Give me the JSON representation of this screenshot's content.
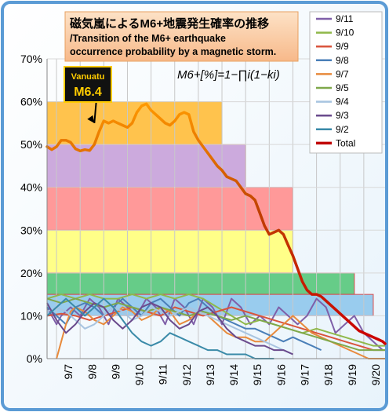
{
  "chart_data": {
    "type": "line",
    "title_ja": "磁気嵐によるM6+地震発生確率の推移",
    "title_en_1": "/Transition of the M6+ earthquake",
    "title_en_2": "occurrence probability by a magnetic storm.",
    "formula": "M6+[%]=1−∏i(1−ki)",
    "annotation": {
      "line1": "Vanuatu",
      "line2": "M6.4",
      "x": 8.6,
      "y": 55
    },
    "x_range": [
      6.6,
      20.9
    ],
    "ylim": [
      0,
      70
    ],
    "yticks": [
      "0%",
      "10%",
      "20%",
      "30%",
      "40%",
      "50%",
      "60%",
      "70%"
    ],
    "categories": [
      "9/7",
      "9/8",
      "9/9",
      "9/10",
      "9/11",
      "9/12",
      "9/13",
      "9/14",
      "9/15",
      "9/16",
      "9/17",
      "9/18",
      "9/19",
      "9/20"
    ],
    "legend": [
      "9/11",
      "9/10",
      "9/9",
      "9/8",
      "9/7",
      "9/5",
      "9/4",
      "9/3",
      "9/2",
      "Total"
    ],
    "colors": {
      "9/11": "#7f5fa8",
      "9/10": "#8fb84a",
      "9/9": "#d9543c",
      "9/8": "#4a7fb8",
      "9/7": "#e88a3c",
      "9/5": "#7fa84a",
      "9/4": "#a8c4e0",
      "9/3": "#6a4a8c",
      "9/2": "#3a8aa8",
      "Total": "#c00000"
    },
    "bands": [
      {
        "y0": 50,
        "y1": 60,
        "x1": 14.0,
        "fill": "#ffc34d",
        "stroke": "#e0a020"
      },
      {
        "y0": 40,
        "y1": 50,
        "x1": 15.0,
        "fill": "#ccaadd",
        "stroke": "#d06a6a"
      },
      {
        "y0": 30,
        "y1": 40,
        "x1": 17.0,
        "fill": "#ff9999",
        "stroke": "#d94a4a"
      },
      {
        "y0": 20,
        "y1": 30,
        "x1": 17.0,
        "fill": "#ffff88",
        "stroke": "#d94a4a"
      },
      {
        "y0": 15,
        "y1": 20,
        "x1": 19.6,
        "fill": "#66cc88",
        "stroke": "#d94a4a"
      },
      {
        "y0": 10,
        "y1": 15,
        "x1": 20.4,
        "fill": "#99ccee",
        "stroke": "#d94a4a"
      }
    ],
    "total": {
      "x": [
        6.6,
        6.8,
        7.0,
        7.2,
        7.4,
        7.6,
        7.8,
        8.0,
        8.2,
        8.4,
        8.6,
        8.8,
        9.0,
        9.2,
        9.4,
        9.6,
        9.8,
        10.0,
        10.2,
        10.4,
        10.6,
        10.8,
        11.0,
        11.2,
        11.4,
        11.6,
        11.8,
        12.0,
        12.2,
        12.4,
        12.6,
        12.8,
        13.0,
        13.2,
        13.4,
        13.6,
        13.8,
        14.0,
        14.2,
        14.4,
        14.6,
        14.8,
        15.0,
        15.2,
        15.4,
        15.6,
        15.8,
        16.0,
        16.2,
        16.4,
        16.6,
        16.8,
        17.0,
        17.2,
        17.4,
        17.6,
        17.8,
        18.0,
        18.2,
        18.4,
        18.6,
        18.8,
        19.0,
        19.2,
        19.4,
        19.6,
        19.8,
        20.0,
        20.2,
        20.4,
        20.6,
        20.8,
        20.9
      ],
      "y": [
        49.5,
        48.8,
        49.5,
        51,
        51,
        50.5,
        49,
        48.5,
        48.8,
        48.6,
        50,
        53,
        55.5,
        55,
        55.5,
        55,
        54.5,
        54,
        55,
        57.5,
        59,
        59.5,
        58,
        57,
        56,
        55,
        54.5,
        55.5,
        57,
        57.5,
        57,
        53,
        51,
        49.5,
        48,
        46.5,
        45,
        44,
        42.5,
        42,
        41.5,
        40,
        38.5,
        38,
        37,
        34,
        31,
        29,
        29.5,
        30,
        29,
        26.5,
        24,
        21,
        18,
        16,
        15,
        15,
        14.5,
        13.5,
        12.5,
        11.5,
        10.5,
        9.5,
        8.5,
        7.5,
        6.5,
        6,
        5.5,
        5,
        4.5,
        4,
        3.5
      ]
    },
    "series": [
      {
        "name": "9/11",
        "x": [
          6.6,
          6.8,
          7.0,
          7.2,
          7.6,
          8.0,
          8.4,
          8.8,
          9.2,
          9.6,
          10.0,
          10.4,
          10.8,
          11.2,
          11.6,
          12.0,
          12.4,
          12.8,
          13.2,
          13.6,
          14.0,
          14.4,
          14.8,
          15.2,
          15.6,
          16.0,
          16.4,
          16.8,
          17.2,
          17.6,
          18.0,
          18.4,
          18.8,
          19.2,
          19.6,
          20.0,
          20.4,
          20.8
        ],
        "y": [
          12,
          10,
          8,
          10,
          12,
          10,
          14,
          12,
          8,
          14,
          12,
          10,
          14,
          12,
          8,
          14,
          12,
          8,
          14,
          12,
          8,
          14,
          12,
          8,
          10,
          8,
          12,
          10,
          8,
          10,
          14,
          12,
          6,
          8,
          10,
          6,
          4,
          2
        ]
      },
      {
        "name": "9/10",
        "x": [
          6.6,
          7.2,
          7.8,
          8.4,
          9.0,
          9.6,
          10.2,
          10.8,
          11.4,
          12.0,
          12.6,
          13.2,
          13.8,
          14.4,
          15.0,
          15.6,
          16.2,
          16.8,
          17.4,
          18.0,
          18.6,
          19.2,
          19.8,
          20.4,
          20.9
        ],
        "y": [
          14,
          15,
          14,
          15,
          14,
          14,
          15,
          14,
          15,
          14,
          15,
          14,
          12,
          10,
          8,
          9,
          8,
          7,
          6,
          7,
          6,
          5,
          4,
          3,
          3
        ]
      },
      {
        "name": "9/9",
        "x": [
          6.6,
          7.2,
          7.8,
          8.4,
          9.0,
          9.6,
          10.2,
          10.8,
          11.4,
          12.0,
          12.6,
          13.2,
          13.8,
          14.4,
          15.0,
          15.6,
          16.2,
          16.8,
          17.4,
          18.0,
          18.6,
          19.2,
          19.8,
          20.4,
          20.9
        ],
        "y": [
          10,
          10.5,
          10,
          9,
          10,
          11,
          12,
          11,
          10,
          12,
          11,
          10,
          11,
          12,
          11,
          10,
          9,
          8,
          7,
          6,
          5,
          4,
          3,
          2,
          2
        ]
      },
      {
        "name": "9/8",
        "x": [
          6.6,
          7.0,
          7.4,
          7.8,
          8.2,
          8.6,
          9.0,
          9.4,
          9.8,
          10.2,
          10.6,
          11.0,
          11.4,
          11.8,
          12.2,
          12.6,
          13.0,
          13.4,
          13.8,
          14.2,
          14.6,
          15.0,
          15.4,
          15.8,
          16.2,
          16.6,
          17.0,
          17.4,
          17.8,
          18.2
        ],
        "y": [
          12,
          10,
          8,
          12,
          13,
          12,
          10,
          12,
          14,
          12,
          10,
          13,
          14,
          12,
          10,
          13,
          14,
          12,
          10,
          9,
          8,
          7,
          7,
          6,
          5,
          4,
          5,
          4,
          3,
          2
        ]
      },
      {
        "name": "9/7",
        "x": [
          7.0,
          7.2,
          7.4,
          7.6,
          7.8,
          8.2,
          8.6,
          9.0,
          9.4,
          9.8,
          10.2,
          10.6,
          11.0,
          11.4,
          11.8,
          12.2,
          12.6,
          13.0,
          13.4,
          13.8,
          14.2,
          14.6,
          15.0,
          15.4,
          15.8,
          16.2,
          16.6,
          17.0,
          17.4,
          17.8,
          18.2,
          18.6,
          19.0,
          19.4,
          19.8,
          20.2,
          20.6,
          20.9
        ],
        "y": [
          0,
          4,
          8,
          11,
          12,
          11,
          9,
          8,
          10,
          12,
          11,
          9,
          10,
          12,
          11,
          8,
          9,
          11,
          10,
          8,
          6,
          5,
          5,
          4,
          4,
          6,
          8,
          10,
          8,
          6,
          5,
          4,
          3,
          2,
          1,
          0,
          0,
          0
        ]
      },
      {
        "name": "9/5",
        "x": [
          6.6,
          7.2,
          7.8,
          8.4,
          9.0,
          9.6,
          10.2,
          10.8,
          11.4,
          12.0,
          12.6,
          13.2,
          13.8,
          14.4,
          15.0,
          15.6,
          16.2,
          16.8,
          17.4,
          18.0,
          18.6,
          19.2,
          19.8,
          20.4,
          20.9
        ],
        "y": [
          14,
          13,
          14,
          13,
          12,
          13,
          12,
          11,
          12,
          11,
          10,
          11,
          10,
          9,
          10,
          9,
          8,
          7,
          6,
          5,
          4,
          3,
          2,
          2,
          2
        ]
      },
      {
        "name": "9/4",
        "x": [
          6.6,
          7.0,
          7.4,
          7.8,
          8.2,
          8.6,
          9.0,
          9.4,
          9.8,
          10.2,
          10.6,
          11.0,
          11.4,
          11.8,
          12.2,
          12.6,
          13.0,
          13.4,
          13.8,
          14.2,
          14.6,
          15.0,
          15.4,
          15.8,
          16.2,
          16.6,
          17.0
        ],
        "y": [
          11,
          12,
          11,
          9,
          7,
          8,
          10,
          12,
          11,
          9,
          10,
          12,
          11,
          10,
          11,
          12,
          11,
          10,
          9,
          8,
          7,
          6,
          5,
          4,
          3,
          2,
          1
        ]
      },
      {
        "name": "9/3",
        "x": [
          6.6,
          7.0,
          7.4,
          7.8,
          8.2,
          8.6,
          9.0,
          9.4,
          9.8,
          10.2,
          10.6,
          11.0,
          11.4,
          11.8,
          12.2,
          12.6,
          13.0,
          13.4,
          13.8,
          14.2,
          14.6,
          15.0,
          15.4,
          15.8,
          16.2,
          16.6,
          17.0
        ],
        "y": [
          13,
          9,
          6,
          8,
          11,
          13,
          12,
          9,
          7,
          9,
          12,
          13,
          12,
          9,
          7,
          8,
          11,
          12,
          10,
          7,
          5,
          4,
          3,
          3,
          2,
          2,
          1
        ]
      },
      {
        "name": "9/2",
        "x": [
          6.6,
          7.0,
          7.4,
          7.8,
          8.2,
          8.6,
          9.0,
          9.4,
          9.8,
          10.2,
          10.6,
          11.0,
          11.4,
          11.8,
          12.2,
          12.6,
          13.0,
          13.4,
          13.8,
          14.2,
          14.6,
          15.0,
          15.4,
          15.8,
          16.2
        ],
        "y": [
          10,
          12,
          14,
          12,
          10,
          12,
          14,
          12,
          9,
          6,
          4,
          3,
          4,
          6,
          5,
          4,
          3,
          2,
          2,
          1,
          1,
          1,
          0,
          0,
          0
        ]
      }
    ]
  }
}
